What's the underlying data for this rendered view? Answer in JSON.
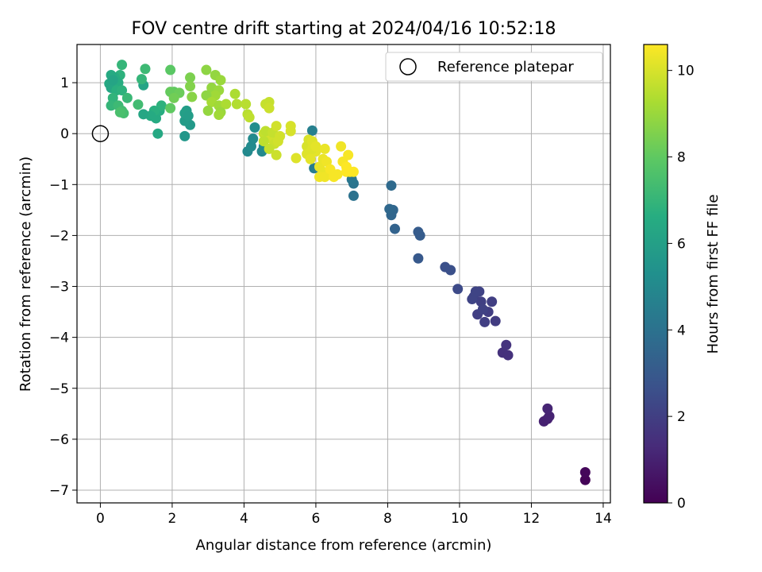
{
  "chart_data": {
    "type": "scatter",
    "title": "FOV centre drift starting at 2024/04/16 10:52:18",
    "xlabel": "Angular distance from reference (arcmin)",
    "ylabel": "Rotation from reference (arcmin)",
    "colorbar_label": "Hours from first FF file",
    "xlim": [
      -0.65,
      14.2
    ],
    "ylim": [
      -7.25,
      1.75
    ],
    "clim": [
      0,
      10.6
    ],
    "x_ticks": [
      0,
      2,
      4,
      6,
      8,
      10,
      12,
      14
    ],
    "y_ticks": [
      1,
      0,
      -1,
      -2,
      -3,
      -4,
      -5,
      -6,
      -7
    ],
    "x_tick_labels": [
      "0",
      "2",
      "4",
      "6",
      "8",
      "10",
      "12",
      "14"
    ],
    "y_tick_labels": [
      "1",
      "0",
      "−1",
      "−2",
      "−3",
      "−4",
      "−5",
      "−6",
      "−7"
    ],
    "c_ticks": [
      0,
      2,
      4,
      6,
      8,
      10
    ],
    "c_tick_labels": [
      "0",
      "2",
      "4",
      "6",
      "8",
      "10"
    ],
    "grid": true,
    "legend": {
      "position": "top-right",
      "entries": [
        "Reference platepar"
      ]
    },
    "reference_point": {
      "x": 0,
      "y": 0
    },
    "colormap": "viridis",
    "points": [
      {
        "x": 13.5,
        "y": -6.8,
        "c": 0.1
      },
      {
        "x": 13.5,
        "y": -6.65,
        "c": 0.2
      },
      {
        "x": 12.35,
        "y": -5.65,
        "c": 1.0
      },
      {
        "x": 12.45,
        "y": -5.6,
        "c": 1.0
      },
      {
        "x": 12.5,
        "y": -5.55,
        "c": 1.05
      },
      {
        "x": 12.45,
        "y": -5.4,
        "c": 1.1
      },
      {
        "x": 11.2,
        "y": -4.3,
        "c": 1.5
      },
      {
        "x": 11.35,
        "y": -4.35,
        "c": 1.5
      },
      {
        "x": 11.3,
        "y": -4.15,
        "c": 1.6
      },
      {
        "x": 10.5,
        "y": -3.55,
        "c": 2.0
      },
      {
        "x": 10.7,
        "y": -3.7,
        "c": 2.0
      },
      {
        "x": 11.0,
        "y": -3.68,
        "c": 1.9
      },
      {
        "x": 10.8,
        "y": -3.5,
        "c": 1.95
      },
      {
        "x": 10.4,
        "y": -3.2,
        "c": 2.1
      },
      {
        "x": 10.6,
        "y": -3.3,
        "c": 2.05
      },
      {
        "x": 10.9,
        "y": -3.3,
        "c": 2.0
      },
      {
        "x": 10.55,
        "y": -3.1,
        "c": 2.15
      },
      {
        "x": 10.35,
        "y": -3.25,
        "c": 2.2
      },
      {
        "x": 10.65,
        "y": -3.45,
        "c": 2.1
      },
      {
        "x": 10.45,
        "y": -3.1,
        "c": 2.2
      },
      {
        "x": 9.95,
        "y": -3.05,
        "c": 2.4
      },
      {
        "x": 9.6,
        "y": -2.62,
        "c": 2.6
      },
      {
        "x": 9.75,
        "y": -2.68,
        "c": 2.6
      },
      {
        "x": 8.85,
        "y": -2.45,
        "c": 3.0
      },
      {
        "x": 8.85,
        "y": -1.93,
        "c": 3.1
      },
      {
        "x": 8.9,
        "y": -2.0,
        "c": 3.1
      },
      {
        "x": 8.2,
        "y": -1.87,
        "c": 3.4
      },
      {
        "x": 8.1,
        "y": -1.6,
        "c": 3.5
      },
      {
        "x": 8.15,
        "y": -1.5,
        "c": 3.5
      },
      {
        "x": 8.05,
        "y": -1.48,
        "c": 3.6
      },
      {
        "x": 8.1,
        "y": -1.02,
        "c": 3.7
      },
      {
        "x": 7.05,
        "y": -1.22,
        "c": 4.0
      },
      {
        "x": 7.05,
        "y": -0.98,
        "c": 4.1
      },
      {
        "x": 7.0,
        "y": -0.9,
        "c": 4.2
      },
      {
        "x": 5.95,
        "y": -0.68,
        "c": 4.5
      },
      {
        "x": 5.9,
        "y": 0.06,
        "c": 4.6
      },
      {
        "x": 4.1,
        "y": -0.35,
        "c": 5.0
      },
      {
        "x": 4.2,
        "y": -0.25,
        "c": 5.1
      },
      {
        "x": 4.3,
        "y": 0.12,
        "c": 5.2
      },
      {
        "x": 4.25,
        "y": -0.1,
        "c": 5.1
      },
      {
        "x": 4.5,
        "y": -0.35,
        "c": 5.0
      },
      {
        "x": 4.55,
        "y": -0.25,
        "c": 5.1
      },
      {
        "x": 2.35,
        "y": -0.05,
        "c": 5.6
      },
      {
        "x": 2.5,
        "y": 0.17,
        "c": 5.7
      },
      {
        "x": 2.35,
        "y": 0.25,
        "c": 5.8
      },
      {
        "x": 2.4,
        "y": 0.45,
        "c": 5.9
      },
      {
        "x": 2.35,
        "y": 0.4,
        "c": 6.0
      },
      {
        "x": 2.45,
        "y": 0.35,
        "c": 5.9
      },
      {
        "x": 1.6,
        "y": 0.0,
        "c": 6.4
      },
      {
        "x": 1.55,
        "y": 0.3,
        "c": 6.5
      },
      {
        "x": 1.65,
        "y": 0.45,
        "c": 6.6
      },
      {
        "x": 1.7,
        "y": 0.55,
        "c": 6.8
      },
      {
        "x": 1.5,
        "y": 0.45,
        "c": 6.7
      },
      {
        "x": 1.4,
        "y": 0.35,
        "c": 6.5
      },
      {
        "x": 1.2,
        "y": 0.38,
        "c": 6.3
      },
      {
        "x": 1.2,
        "y": 0.95,
        "c": 6.2
      },
      {
        "x": 1.25,
        "y": 1.27,
        "c": 7.2
      },
      {
        "x": 1.15,
        "y": 1.07,
        "c": 7.0
      },
      {
        "x": 1.05,
        "y": 0.57,
        "c": 7.3
      },
      {
        "x": 0.6,
        "y": 1.35,
        "c": 7.0
      },
      {
        "x": 0.55,
        "y": 1.15,
        "c": 6.8
      },
      {
        "x": 0.4,
        "y": 1.1,
        "c": 6.6
      },
      {
        "x": 0.3,
        "y": 1.15,
        "c": 6.5
      },
      {
        "x": 0.25,
        "y": 0.98,
        "c": 6.4
      },
      {
        "x": 0.3,
        "y": 0.9,
        "c": 6.3
      },
      {
        "x": 0.5,
        "y": 1.0,
        "c": 6.6
      },
      {
        "x": 0.45,
        "y": 0.85,
        "c": 6.7
      },
      {
        "x": 0.6,
        "y": 0.85,
        "c": 6.8
      },
      {
        "x": 0.75,
        "y": 0.7,
        "c": 7.1
      },
      {
        "x": 0.35,
        "y": 0.7,
        "c": 6.9
      },
      {
        "x": 0.3,
        "y": 0.55,
        "c": 7.0
      },
      {
        "x": 0.5,
        "y": 0.55,
        "c": 7.2
      },
      {
        "x": 0.6,
        "y": 0.45,
        "c": 7.3
      },
      {
        "x": 0.65,
        "y": 0.4,
        "c": 7.4
      },
      {
        "x": 0.55,
        "y": 0.42,
        "c": 7.5
      },
      {
        "x": 0.35,
        "y": 1.05,
        "c": 6.2
      },
      {
        "x": 1.95,
        "y": 1.25,
        "c": 7.9
      },
      {
        "x": 2.05,
        "y": 0.82,
        "c": 8.0
      },
      {
        "x": 1.95,
        "y": 0.82,
        "c": 8.1
      },
      {
        "x": 2.2,
        "y": 0.8,
        "c": 8.2
      },
      {
        "x": 2.05,
        "y": 0.7,
        "c": 8.3
      },
      {
        "x": 1.95,
        "y": 0.5,
        "c": 8.0
      },
      {
        "x": 2.5,
        "y": 1.1,
        "c": 8.5
      },
      {
        "x": 2.5,
        "y": 0.93,
        "c": 8.6
      },
      {
        "x": 2.55,
        "y": 0.72,
        "c": 8.7
      },
      {
        "x": 2.95,
        "y": 1.25,
        "c": 8.8
      },
      {
        "x": 3.2,
        "y": 1.15,
        "c": 8.9
      },
      {
        "x": 3.35,
        "y": 1.05,
        "c": 9.0
      },
      {
        "x": 3.1,
        "y": 0.9,
        "c": 8.9
      },
      {
        "x": 3.3,
        "y": 0.85,
        "c": 9.0
      },
      {
        "x": 3.2,
        "y": 0.75,
        "c": 9.1
      },
      {
        "x": 2.95,
        "y": 0.75,
        "c": 8.8
      },
      {
        "x": 3.1,
        "y": 0.62,
        "c": 9.2
      },
      {
        "x": 3.3,
        "y": 0.55,
        "c": 9.1
      },
      {
        "x": 3.5,
        "y": 0.58,
        "c": 9.3
      },
      {
        "x": 3.35,
        "y": 0.42,
        "c": 9.0
      },
      {
        "x": 3.0,
        "y": 0.45,
        "c": 8.9
      },
      {
        "x": 3.3,
        "y": 0.37,
        "c": 9.1
      },
      {
        "x": 3.75,
        "y": 0.78,
        "c": 9.3
      },
      {
        "x": 3.8,
        "y": 0.58,
        "c": 9.4
      },
      {
        "x": 4.05,
        "y": 0.58,
        "c": 9.5
      },
      {
        "x": 4.1,
        "y": 0.38,
        "c": 9.5
      },
      {
        "x": 4.15,
        "y": 0.32,
        "c": 9.6
      },
      {
        "x": 4.6,
        "y": 0.58,
        "c": 9.7
      },
      {
        "x": 4.7,
        "y": 0.62,
        "c": 9.7
      },
      {
        "x": 4.7,
        "y": 0.5,
        "c": 9.8
      },
      {
        "x": 4.55,
        "y": 0.0,
        "c": 9.7
      },
      {
        "x": 4.65,
        "y": -0.05,
        "c": 9.8
      },
      {
        "x": 4.75,
        "y": -0.1,
        "c": 9.9
      },
      {
        "x": 4.55,
        "y": -0.15,
        "c": 9.6
      },
      {
        "x": 4.6,
        "y": 0.05,
        "c": 9.6
      },
      {
        "x": 4.8,
        "y": 0.02,
        "c": 9.7
      },
      {
        "x": 4.85,
        "y": -0.2,
        "c": 9.8
      },
      {
        "x": 4.9,
        "y": 0.15,
        "c": 9.9
      },
      {
        "x": 5.0,
        "y": -0.05,
        "c": 9.9
      },
      {
        "x": 4.95,
        "y": -0.15,
        "c": 9.9
      },
      {
        "x": 4.7,
        "y": -0.3,
        "c": 9.7
      },
      {
        "x": 4.9,
        "y": -0.42,
        "c": 9.8
      },
      {
        "x": 5.3,
        "y": 0.05,
        "c": 10.0
      },
      {
        "x": 5.3,
        "y": 0.15,
        "c": 10.0
      },
      {
        "x": 5.45,
        "y": -0.48,
        "c": 10.1
      },
      {
        "x": 5.75,
        "y": -0.25,
        "c": 10.0
      },
      {
        "x": 5.8,
        "y": -0.12,
        "c": 10.0
      },
      {
        "x": 5.9,
        "y": -0.15,
        "c": 10.1
      },
      {
        "x": 5.75,
        "y": -0.4,
        "c": 10.1
      },
      {
        "x": 5.85,
        "y": -0.5,
        "c": 10.2
      },
      {
        "x": 6.0,
        "y": -0.35,
        "c": 10.2
      },
      {
        "x": 5.9,
        "y": -0.3,
        "c": 10.1
      },
      {
        "x": 6.0,
        "y": -0.25,
        "c": 10.2
      },
      {
        "x": 6.1,
        "y": -0.65,
        "c": 10.3
      },
      {
        "x": 6.2,
        "y": -0.5,
        "c": 10.3
      },
      {
        "x": 6.25,
        "y": -0.3,
        "c": 10.3
      },
      {
        "x": 6.3,
        "y": -0.55,
        "c": 10.4
      },
      {
        "x": 6.35,
        "y": -0.75,
        "c": 10.4
      },
      {
        "x": 6.2,
        "y": -0.75,
        "c": 10.3
      },
      {
        "x": 6.1,
        "y": -0.85,
        "c": 10.4
      },
      {
        "x": 6.25,
        "y": -0.85,
        "c": 10.4
      },
      {
        "x": 6.4,
        "y": -0.7,
        "c": 10.5
      },
      {
        "x": 6.5,
        "y": -0.85,
        "c": 10.5
      },
      {
        "x": 6.6,
        "y": -0.8,
        "c": 10.5
      },
      {
        "x": 6.75,
        "y": -0.55,
        "c": 10.5
      },
      {
        "x": 6.7,
        "y": -0.25,
        "c": 10.4
      },
      {
        "x": 6.9,
        "y": -0.42,
        "c": 10.5
      },
      {
        "x": 6.85,
        "y": -0.65,
        "c": 10.6
      },
      {
        "x": 6.95,
        "y": -0.75,
        "c": 10.6
      },
      {
        "x": 7.05,
        "y": -0.75,
        "c": 10.6
      },
      {
        "x": 6.85,
        "y": -0.75,
        "c": 10.6
      }
    ]
  }
}
